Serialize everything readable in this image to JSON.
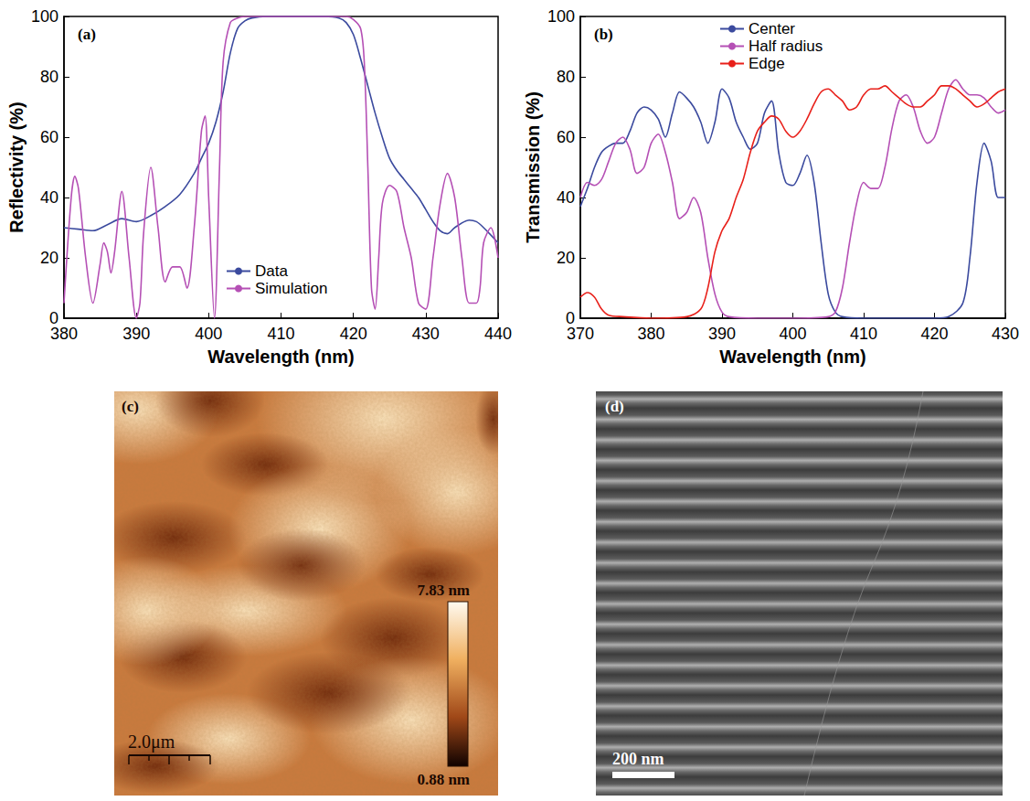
{
  "chart_data": [
    {
      "type": "line",
      "title": "(a)",
      "x_label": "Wavelength (nm)",
      "y_label": "Reflectivity (%)",
      "xlim": [
        380,
        440
      ],
      "xticks": [
        380,
        390,
        400,
        410,
        420,
        430,
        440
      ],
      "ylim": [
        0,
        100
      ],
      "yticks": [
        0,
        20,
        40,
        60,
        80,
        100
      ],
      "grid": false,
      "legend": "bottom",
      "series": [
        {
          "name": "Data",
          "color": "#3b4a9e",
          "x": [
            380,
            382,
            384,
            386,
            388,
            390,
            392,
            394,
            396,
            398,
            399,
            400,
            401,
            402,
            403,
            404,
            405,
            406,
            408,
            410,
            412,
            414,
            416,
            418,
            419,
            420,
            421,
            422,
            423,
            424,
            425,
            426,
            427,
            428,
            429,
            430,
            431,
            432,
            433,
            434,
            436,
            437,
            438,
            440
          ],
          "values": [
            30,
            29.5,
            29,
            31,
            33,
            32,
            34,
            37,
            41,
            48,
            53,
            58,
            65,
            75,
            88,
            96,
            98.5,
            99.5,
            100,
            100,
            100,
            100,
            100,
            99.5,
            98,
            94,
            86,
            77,
            68,
            60,
            53,
            49,
            46,
            43,
            40,
            36,
            32,
            29,
            28,
            30,
            32.5,
            32,
            30,
            25
          ]
        },
        {
          "name": "Simulation",
          "color": "#b550b5",
          "x": [
            380,
            381,
            381.5,
            382,
            383,
            384,
            385,
            385.5,
            386,
            386.5,
            387,
            388,
            389,
            390,
            390.5,
            391,
            392,
            393,
            394,
            395,
            396,
            397,
            398,
            399,
            399.5,
            400,
            400.8,
            401.5,
            402,
            403,
            404,
            405,
            410,
            415,
            419,
            420,
            421,
            421.5,
            422,
            422.5,
            423,
            423.5,
            424,
            425,
            426,
            427,
            428,
            429,
            430,
            431,
            432,
            433,
            434,
            435,
            436,
            437,
            437.5,
            438,
            439,
            440
          ],
          "values": [
            5,
            40,
            47,
            43,
            20,
            5,
            18,
            25,
            22,
            15,
            22,
            42,
            20,
            0,
            5,
            28,
            50,
            30,
            12,
            17,
            17,
            10,
            30,
            62,
            67,
            40,
            0,
            50,
            85,
            98,
            99.5,
            100,
            100,
            100,
            100,
            99,
            96,
            85,
            50,
            10,
            3,
            20,
            38,
            44,
            42,
            30,
            20,
            5,
            3,
            20,
            38,
            48,
            40,
            20,
            5,
            5,
            10,
            25,
            30,
            20
          ]
        }
      ]
    },
    {
      "type": "line",
      "title": "(b)",
      "x_label": "Wavelength (nm)",
      "y_label": "Transmission (%)",
      "xlim": [
        370,
        430
      ],
      "xticks": [
        370,
        380,
        390,
        400,
        410,
        420,
        430
      ],
      "ylim": [
        0,
        100
      ],
      "yticks": [
        0,
        20,
        40,
        60,
        80,
        100
      ],
      "grid": false,
      "legend": "top",
      "series": [
        {
          "name": "Center",
          "color": "#3b4a9e",
          "x": [
            370,
            371,
            372,
            373,
            374,
            375,
            376,
            377,
            378,
            379,
            380,
            381,
            382,
            383,
            384,
            385,
            386,
            387,
            388,
            389,
            390,
            391,
            392,
            393,
            394,
            395,
            396,
            397,
            398,
            399,
            400,
            401,
            402,
            403,
            404,
            405,
            406,
            407,
            410,
            415,
            420,
            422,
            424,
            425,
            426,
            427,
            428,
            429,
            430
          ],
          "values": [
            37,
            43,
            50,
            55,
            57,
            58,
            58,
            62,
            68,
            70,
            69,
            66,
            60,
            68,
            75,
            73,
            70,
            65,
            58,
            65,
            76,
            73,
            65,
            60,
            56,
            58,
            68,
            72,
            55,
            45,
            44,
            48,
            54,
            45,
            25,
            8,
            2,
            0.5,
            0,
            0,
            0,
            0.5,
            5,
            20,
            45,
            58,
            52,
            40,
            40
          ]
        },
        {
          "name": "Half radius",
          "color": "#b550b5",
          "x": [
            370,
            371,
            372,
            373,
            374,
            375,
            376,
            377,
            378,
            379,
            380,
            381,
            382,
            383,
            384,
            385,
            386,
            387,
            388,
            389,
            390,
            391,
            395,
            400,
            405,
            406,
            407,
            408,
            409,
            410,
            411,
            412,
            413,
            414,
            415,
            416,
            417,
            418,
            419,
            420,
            421,
            422,
            423,
            424,
            425,
            426,
            427,
            428,
            429,
            430
          ],
          "values": [
            40,
            45,
            44,
            46,
            52,
            58,
            60,
            56,
            48,
            50,
            58,
            61,
            55,
            45,
            33,
            35,
            40,
            35,
            20,
            8,
            2,
            0.5,
            0,
            0,
            0.5,
            2,
            10,
            25,
            38,
            45,
            43,
            43,
            50,
            63,
            72,
            74,
            70,
            62,
            58,
            60,
            68,
            76,
            79,
            76,
            74,
            74,
            73,
            70,
            68,
            69
          ]
        },
        {
          "name": "Edge",
          "color": "#e8201a",
          "x": [
            370,
            371,
            372,
            373,
            374,
            376,
            380,
            385,
            387,
            388,
            389,
            390,
            391,
            392,
            393,
            394,
            395,
            396,
            397,
            398,
            399,
            400,
            401,
            402,
            403,
            404,
            405,
            406,
            407,
            408,
            409,
            410,
            411,
            412,
            413,
            414,
            415,
            416,
            417,
            418,
            419,
            420,
            421,
            422,
            423,
            424,
            425,
            426,
            427,
            428,
            429,
            430
          ],
          "values": [
            7,
            8.5,
            7,
            3,
            1,
            0.5,
            0,
            0.5,
            3,
            10,
            22,
            29,
            33,
            40,
            46,
            55,
            62,
            65,
            67,
            66,
            62,
            60,
            62,
            66,
            71,
            75,
            76,
            74,
            72,
            69,
            70,
            74,
            76,
            76,
            77,
            75,
            73,
            71,
            70,
            70,
            72,
            74,
            77,
            77,
            76,
            74,
            72,
            70,
            71,
            73,
            75,
            76
          ]
        }
      ]
    }
  ],
  "panels": [
    {
      "title": "(c)",
      "type": "afm_image",
      "scale_bar": "2.0μm",
      "colorbar": {
        "range": [
          0.88,
          7.83
        ],
        "ticks": [
          {
            "value": 7.83,
            "label": "7.83 nm"
          },
          {
            "value": 0.88,
            "label": "0.88 nm"
          }
        ]
      }
    },
    {
      "title": "(d)",
      "type": "sem_image",
      "scale_bar": "200 nm"
    }
  ]
}
